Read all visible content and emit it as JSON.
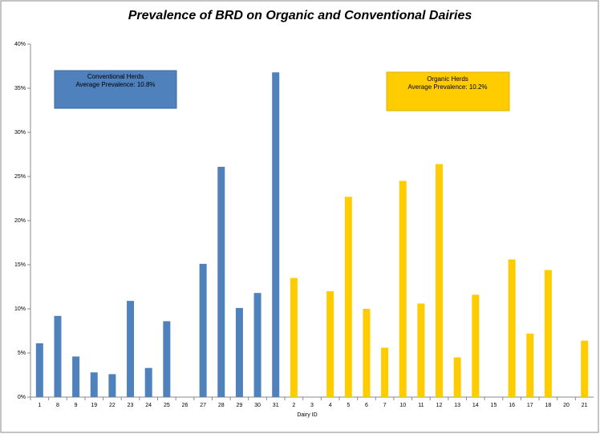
{
  "chart_data": {
    "type": "bar",
    "title": "Prevalence of BRD on Organic and Conventional Dairies",
    "x_label": "Dairy ID",
    "categories": [
      "1",
      "8",
      "9",
      "19",
      "22",
      "23",
      "24",
      "25",
      "26",
      "27",
      "28",
      "29",
      "30",
      "31",
      "2",
      "3",
      "4",
      "5",
      "6",
      "7",
      "10",
      "11",
      "12",
      "13",
      "14",
      "15",
      "16",
      "17",
      "18",
      "20",
      "21"
    ],
    "series": [
      {
        "name": "Conventional Herds",
        "color": "#4f81bd",
        "values": [
          6.1,
          9.2,
          4.6,
          2.8,
          2.6,
          10.9,
          3.3,
          8.6,
          0,
          15.1,
          26.1,
          10.1,
          11.8,
          36.8,
          null,
          null,
          null,
          null,
          null,
          null,
          null,
          null,
          null,
          null,
          null,
          null,
          null,
          null,
          null,
          null,
          null
        ]
      },
      {
        "name": "Organic Herds",
        "color": "#ffcc00",
        "values": [
          null,
          null,
          null,
          null,
          null,
          null,
          null,
          null,
          null,
          null,
          null,
          null,
          null,
          null,
          13.5,
          0,
          12.0,
          22.7,
          10.0,
          5.6,
          24.5,
          10.6,
          26.4,
          4.5,
          11.6,
          0,
          15.6,
          7.2,
          14.4,
          0,
          6.4
        ]
      }
    ],
    "annotations": [
      "Average Prevalence: 10.8%",
      "Average Prevalence: 10.2%"
    ],
    "ylim": [
      0,
      40
    ],
    "yticks": [
      {
        "value": 0,
        "label": "0%"
      },
      {
        "value": 5,
        "label": "5%"
      },
      {
        "value": 10,
        "label": "10%"
      },
      {
        "value": 15,
        "label": "15%"
      },
      {
        "value": 20,
        "label": "20%"
      },
      {
        "value": 25,
        "label": "25%"
      },
      {
        "value": 30,
        "label": "30%"
      },
      {
        "value": 35,
        "label": "35%"
      },
      {
        "value": 40,
        "label": "40%"
      }
    ]
  }
}
